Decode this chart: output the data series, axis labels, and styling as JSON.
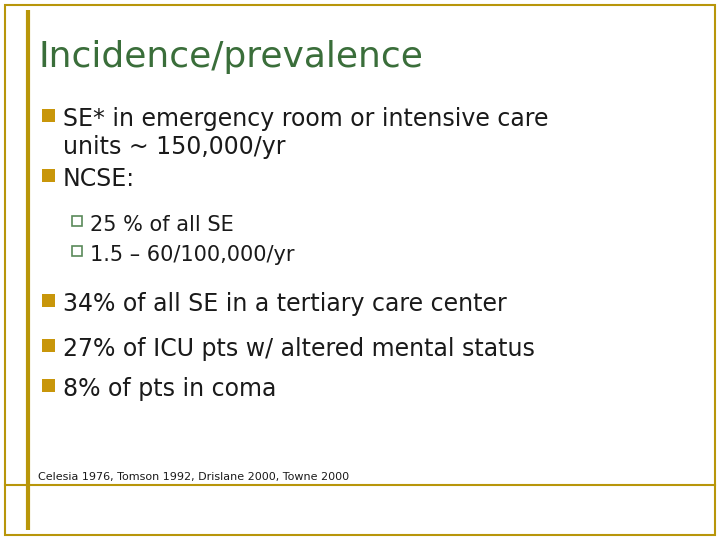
{
  "title": "Incidence/prevalence",
  "title_color": "#3a6e3a",
  "title_fontsize": 26,
  "background_color": "#ffffff",
  "border_color": "#b8960a",
  "border_left_color": "#b8960a",
  "bullet_color": "#c8960a",
  "sub_bullet_color": "#5a8a5a",
  "text_color": "#1a1a1a",
  "bullet_items": [
    {
      "level": 1,
      "text": "SE* in emergency room or intensive care\nunits ~ 150,000/yr",
      "fontsize": 17
    },
    {
      "level": 1,
      "text": "NCSE:",
      "fontsize": 17
    },
    {
      "level": 2,
      "text": "25 % of all SE",
      "fontsize": 15
    },
    {
      "level": 2,
      "text": "1.5 – 60/100,000/yr",
      "fontsize": 15
    },
    {
      "level": 1,
      "text": "34% of all SE in a tertiary care center",
      "fontsize": 17
    },
    {
      "level": 1,
      "text": "27% of ICU pts w/ altered mental status",
      "fontsize": 17
    },
    {
      "level": 1,
      "text": "8% of pts in coma",
      "fontsize": 17
    }
  ],
  "footnote": "Celesia 1976, Tomson 1992, Drislane 2000, Towne 2000",
  "footnote_fontsize": 8,
  "fig_width": 7.2,
  "fig_height": 5.4,
  "dpi": 100
}
